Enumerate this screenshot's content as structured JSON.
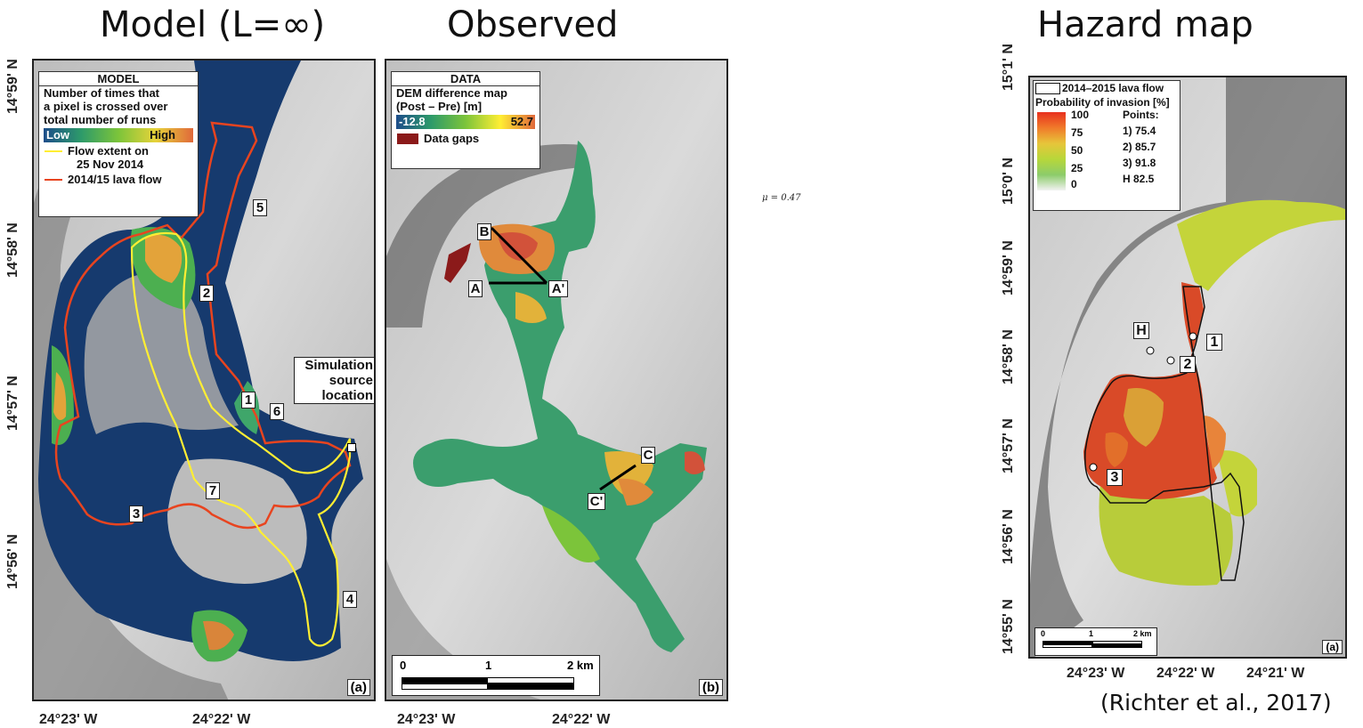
{
  "titles": {
    "model": "Model (L=∞)",
    "observed": "Observed",
    "hazard": "Hazard map"
  },
  "mu_label": "μ = 0.47",
  "citation": "(Richter et al., 2017)",
  "panel_a": {
    "lat_labels": [
      "14°59' N",
      "14°58' N",
      "14°57' N",
      "14°56' N"
    ],
    "lon_labels": [
      "24°23' W",
      "24°22' W"
    ],
    "legend": {
      "title": "MODEL",
      "desc": [
        "Number of times that",
        "a pixel is crossed over",
        "total number of runs"
      ],
      "low": "Low",
      "high": "High",
      "flow_extent": [
        "Flow extent on",
        "25 Nov 2014"
      ],
      "lava_flow": "2014/15 lava flow"
    },
    "points": [
      "1",
      "2",
      "3",
      "4",
      "5",
      "6",
      "7"
    ],
    "source": [
      "Simulation",
      "source",
      "location"
    ],
    "tag": "(a)"
  },
  "panel_b": {
    "legend": {
      "title": "DATA",
      "desc": [
        "DEM difference map",
        "(Post –  Pre) [m]"
      ],
      "min": "-12.8",
      "max": "52.7",
      "gaps": "Data gaps"
    },
    "lines": [
      "B",
      "A",
      "A'",
      "C",
      "C'"
    ],
    "scale": {
      "a": "0",
      "b": "1",
      "c": "2 km"
    },
    "lon_labels": [
      "24°23' W",
      "24°22' W"
    ],
    "tag": "(b)"
  },
  "panel_c": {
    "lat_labels": [
      "15°1' N",
      "15°0' N",
      "14°59' N",
      "14°58' N",
      "14°57' N",
      "14°56' N",
      "14°55' N"
    ],
    "lon_labels": [
      "24°23'  W",
      "24°22'  W",
      "24°21'  W"
    ],
    "legend": {
      "lava": "2014–2015 lava flow",
      "prob": "Probability of invasion [%]",
      "levels": [
        "100",
        "75",
        "50",
        "25",
        "0"
      ],
      "points_title": "Points:",
      "points": [
        "1) 75.4",
        "2) 85.7",
        "3) 91.8",
        "H 82.5"
      ]
    },
    "markers": [
      "H",
      "1",
      "2",
      "3"
    ],
    "scale": {
      "a": "0",
      "b": "1",
      "c": "2 km"
    },
    "tag": "(a)"
  },
  "colors": {
    "red_flow": "#e8441f",
    "yellow": "#ffee33",
    "deep_blue": "#163a6e"
  }
}
